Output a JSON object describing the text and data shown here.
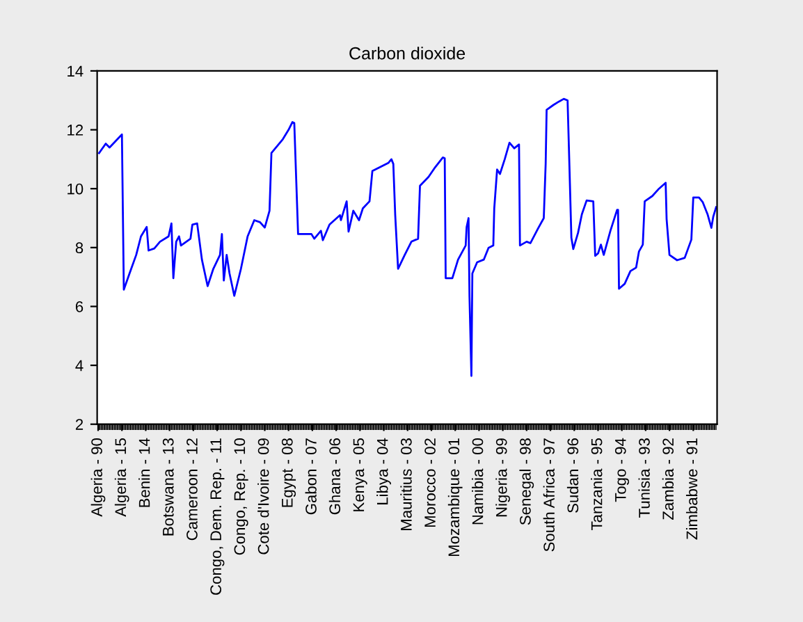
{
  "chart_data": {
    "type": "line",
    "title": "Carbon dioxide",
    "categories": [
      "Algeria - 90",
      null,
      null,
      null,
      null,
      null,
      null,
      null,
      null,
      null,
      null,
      null,
      null,
      null,
      null,
      null,
      null,
      null,
      null,
      null,
      null,
      null,
      null,
      null,
      null,
      "Algeria - 15",
      null,
      null,
      null,
      null,
      null,
      null,
      null,
      null,
      null,
      null,
      null,
      null,
      null,
      null,
      null,
      null,
      null,
      null,
      null,
      null,
      null,
      null,
      null,
      null,
      "Benin - 14",
      null,
      null,
      null,
      null,
      null,
      null,
      null,
      null,
      null,
      null,
      null,
      null,
      null,
      null,
      null,
      null,
      null,
      null,
      null,
      null,
      null,
      null,
      null,
      null,
      "Botswana - 13",
      null,
      null,
      null,
      null,
      null,
      null,
      null,
      null,
      null,
      null,
      null,
      null,
      null,
      null,
      null,
      null,
      null,
      null,
      null,
      null,
      null,
      null,
      null,
      null,
      "Cameroon - 12",
      null,
      null,
      null,
      null,
      null,
      null,
      null,
      null,
      null,
      null,
      null,
      null,
      null,
      null,
      null,
      null,
      null,
      null,
      null,
      null,
      null,
      null,
      null,
      null,
      "Congo, Dem. Rep. - 11",
      null,
      null,
      null,
      null,
      null,
      null,
      null,
      null,
      null,
      null,
      null,
      null,
      null,
      null,
      null,
      null,
      null,
      null,
      null,
      null,
      null,
      null,
      null,
      null,
      "Congo, Rep. - 10",
      null,
      null,
      null,
      null,
      null,
      null,
      null,
      null,
      null,
      null,
      null,
      null,
      null,
      null,
      null,
      null,
      null,
      null,
      null,
      null,
      null,
      null,
      null,
      null,
      "Cote d'Ivoire - 09",
      null,
      null,
      null,
      null,
      null,
      null,
      null,
      null,
      null,
      null,
      null,
      null,
      null,
      null,
      null,
      null,
      null,
      null,
      null,
      null,
      null,
      null,
      null,
      null,
      "Egypt - 08",
      null,
      null,
      null,
      null,
      null,
      null,
      null,
      null,
      null,
      null,
      null,
      null,
      null,
      null,
      null,
      null,
      null,
      null,
      null,
      null,
      null,
      null,
      null,
      null,
      "Gabon - 07",
      null,
      null,
      null,
      null,
      null,
      null,
      null,
      null,
      null,
      null,
      null,
      null,
      null,
      null,
      null,
      null,
      null,
      null,
      null,
      null,
      null,
      null,
      null,
      null,
      "Ghana - 06",
      null,
      null,
      null,
      null,
      null,
      null,
      null,
      null,
      null,
      null,
      null,
      null,
      null,
      null,
      null,
      null,
      null,
      null,
      null,
      null,
      null,
      null,
      null,
      null,
      "Kenya - 05",
      null,
      null,
      null,
      null,
      null,
      null,
      null,
      null,
      null,
      null,
      null,
      null,
      null,
      null,
      null,
      null,
      null,
      null,
      null,
      null,
      null,
      null,
      null,
      null,
      "Libya - 04",
      null,
      null,
      null,
      null,
      null,
      null,
      null,
      null,
      null,
      null,
      null,
      null,
      null,
      null,
      null,
      null,
      null,
      null,
      null,
      null,
      null,
      null,
      null,
      null,
      "Mauritius - 03",
      null,
      null,
      null,
      null,
      null,
      null,
      null,
      null,
      null,
      null,
      null,
      null,
      null,
      null,
      null,
      null,
      null,
      null,
      null,
      null,
      null,
      null,
      null,
      null,
      "Morocco - 02",
      null,
      null,
      null,
      null,
      null,
      null,
      null,
      null,
      null,
      null,
      null,
      null,
      null,
      null,
      null,
      null,
      null,
      null,
      null,
      null,
      null,
      null,
      null,
      null,
      "Mozambique - 01",
      null,
      null,
      null,
      null,
      null,
      null,
      null,
      null,
      null,
      null,
      null,
      null,
      null,
      null,
      null,
      null,
      null,
      null,
      null,
      null,
      null,
      null,
      null,
      null,
      "Namibia - 00",
      null,
      null,
      null,
      null,
      null,
      null,
      null,
      null,
      null,
      null,
      null,
      null,
      null,
      null,
      null,
      null,
      null,
      null,
      null,
      null,
      null,
      null,
      null,
      null,
      "Nigeria - 99",
      null,
      null,
      null,
      null,
      null,
      null,
      null,
      null,
      null,
      null,
      null,
      null,
      null,
      null,
      null,
      null,
      null,
      null,
      null,
      null,
      null,
      null,
      null,
      null,
      "Senegal - 98",
      null,
      null,
      null,
      null,
      null,
      null,
      null,
      null,
      null,
      null,
      null,
      null,
      null,
      null,
      null,
      null,
      null,
      null,
      null,
      null,
      null,
      null,
      null,
      null,
      "South Africa - 97",
      null,
      null,
      null,
      null,
      null,
      null,
      null,
      null,
      null,
      null,
      null,
      null,
      null,
      null,
      null,
      null,
      null,
      null,
      null,
      null,
      null,
      null,
      null,
      null,
      "Sudan - 96",
      null,
      null,
      null,
      null,
      null,
      null,
      null,
      null,
      null,
      null,
      null,
      null,
      null,
      null,
      null,
      null,
      null,
      null,
      null,
      null,
      null,
      null,
      null,
      null,
      "Tanzania - 95",
      null,
      null,
      null,
      null,
      null,
      null,
      null,
      null,
      null,
      null,
      null,
      null,
      null,
      null,
      null,
      null,
      null,
      null,
      null,
      null,
      null,
      null,
      null,
      null,
      "Togo - 94",
      null,
      null,
      null,
      null,
      null,
      null,
      null,
      null,
      null,
      null,
      null,
      null,
      null,
      null,
      null,
      null,
      null,
      null,
      null,
      null,
      null,
      null,
      null,
      null,
      "Tunisia - 93",
      null,
      null,
      null,
      null,
      null,
      null,
      null,
      null,
      null,
      null,
      null,
      null,
      null,
      null,
      null,
      null,
      null,
      null,
      null,
      null,
      null,
      null,
      null,
      null,
      "Zambia - 92",
      null,
      null,
      null,
      null,
      null,
      null,
      null,
      null,
      null,
      null,
      null,
      null,
      null,
      null,
      null,
      null,
      null,
      null,
      null,
      null,
      null,
      null,
      null,
      null,
      "Zimbabwe - 91",
      null,
      null,
      null,
      null,
      null,
      null,
      null,
      null,
      null,
      null,
      null,
      null,
      null,
      null,
      null,
      null,
      null,
      null,
      null,
      null,
      null,
      null,
      null,
      null
    ],
    "series": [
      {
        "color": "#0000ff",
        "values": [
          null,
          11.21,
          null,
          null,
          null,
          null,
          null,
          null,
          11.53,
          null,
          null,
          null,
          11.4,
          null,
          null,
          null,
          null,
          null,
          null,
          null,
          null,
          null,
          null,
          null,
          null,
          11.84,
          null,
          6.57,
          null,
          null,
          null,
          null,
          null,
          7.12,
          null,
          null,
          null,
          null,
          null,
          null,
          7.75,
          null,
          null,
          null,
          null,
          8.38,
          null,
          null,
          null,
          null,
          null,
          8.7,
          null,
          7.9,
          null,
          null,
          null,
          null,
          null,
          7.97,
          null,
          null,
          null,
          null,
          null,
          8.2,
          null,
          null,
          null,
          null,
          null,
          null,
          null,
          null,
          8.38,
          null,
          null,
          8.82,
          null,
          6.96,
          null,
          null,
          8.2,
          null,
          null,
          8.38,
          null,
          8.07,
          null,
          null,
          null,
          null,
          null,
          null,
          null,
          null,
          null,
          8.3,
          null,
          8.78,
          null,
          null,
          null,
          null,
          8.82,
          null,
          null,
          null,
          null,
          7.59,
          null,
          null,
          null,
          null,
          null,
          6.69,
          null,
          null,
          null,
          null,
          null,
          7.28,
          null,
          null,
          null,
          null,
          null,
          null,
          7.75,
          null,
          8.46,
          null,
          6.88,
          null,
          null,
          7.75,
          null,
          null,
          7.12,
          null,
          null,
          null,
          null,
          6.36,
          null,
          null,
          null,
          null,
          null,
          null,
          7.28,
          null,
          null,
          null,
          null,
          null,
          null,
          8.38,
          null,
          null,
          null,
          null,
          null,
          null,
          8.93,
          null,
          null,
          null,
          null,
          null,
          8.86,
          null,
          null,
          null,
          null,
          8.68,
          null,
          null,
          null,
          null,
          9.25,
          null,
          11.21,
          null,
          null,
          null,
          null,
          null,
          null,
          null,
          null,
          null,
          null,
          null,
          11.68,
          null,
          null,
          null,
          null,
          null,
          12.0,
          null,
          null,
          null,
          12.26,
          null,
          12.23,
          null,
          10.34,
          null,
          8.46,
          null,
          null,
          null,
          null,
          null,
          null,
          null,
          null,
          null,
          null,
          null,
          null,
          null,
          8.46,
          null,
          null,
          8.3,
          null,
          null,
          null,
          null,
          null,
          null,
          8.57,
          null,
          8.25,
          null,
          null,
          null,
          null,
          null,
          null,
          8.78,
          null,
          null,
          null,
          null,
          null,
          null,
          null,
          null,
          null,
          null,
          9.1,
          8.93,
          null,
          null,
          null,
          null,
          null,
          9.57,
          null,
          8.54,
          null,
          null,
          null,
          null,
          9.25,
          null,
          null,
          null,
          null,
          null,
          8.93,
          null,
          null,
          null,
          9.33,
          null,
          null,
          null,
          null,
          null,
          null,
          9.57,
          null,
          null,
          10.6,
          null,
          null,
          null,
          null,
          null,
          null,
          null,
          null,
          null,
          null,
          null,
          null,
          null,
          null,
          null,
          null,
          10.88,
          null,
          null,
          11.0,
          null,
          10.84,
          null,
          9.1,
          null,
          null,
          7.28,
          null,
          null,
          null,
          null,
          null,
          null,
          7.75,
          null,
          null,
          null,
          null,
          null,
          null,
          8.2,
          null,
          null,
          null,
          null,
          null,
          null,
          8.3,
          null,
          10.1,
          null,
          null,
          null,
          null,
          null,
          null,
          null,
          null,
          10.4,
          null,
          null,
          null,
          null,
          null,
          null,
          10.73,
          null,
          null,
          null,
          null,
          null,
          null,
          null,
          11.06,
          null,
          11.03,
          6.96,
          null,
          null,
          null,
          null,
          null,
          null,
          6.96,
          null,
          null,
          null,
          null,
          null,
          7.59,
          null,
          null,
          null,
          null,
          null,
          null,
          null,
          8.07,
          8.7,
          null,
          9.0,
          6.33,
          null,
          3.64,
          7.12,
          null,
          null,
          null,
          null,
          7.5,
          null,
          null,
          null,
          null,
          null,
          null,
          7.59,
          null,
          null,
          null,
          null,
          7.99,
          null,
          null,
          null,
          null,
          8.07,
          9.33,
          null,
          null,
          10.65,
          null,
          null,
          10.5,
          null,
          null,
          null,
          null,
          11.0,
          null,
          null,
          null,
          null,
          11.56,
          null,
          null,
          null,
          null,
          11.37,
          null,
          null,
          null,
          null,
          11.5,
          8.07,
          null,
          null,
          null,
          null,
          null,
          null,
          8.2,
          null,
          null,
          null,
          8.15,
          null,
          null,
          null,
          null,
          null,
          null,
          null,
          8.65,
          null,
          null,
          null,
          null,
          null,
          9.0,
          null,
          10.85,
          12.68,
          null,
          null,
          null,
          null,
          null,
          null,
          12.84,
          null,
          null,
          null,
          null,
          null,
          12.96,
          null,
          null,
          null,
          null,
          13.05,
          null,
          null,
          null,
          13.0,
          null,
          10.7,
          null,
          8.33,
          null,
          7.95,
          null,
          null,
          null,
          null,
          8.5,
          null,
          null,
          null,
          9.13,
          null,
          null,
          null,
          null,
          9.6,
          null,
          null,
          null,
          null,
          null,
          null,
          9.57,
          null,
          7.72,
          null,
          null,
          7.8,
          null,
          null,
          8.1,
          null,
          null,
          7.75,
          null,
          null,
          null,
          null,
          null,
          null,
          8.57,
          null,
          null,
          null,
          null,
          null,
          null,
          9.28,
          9.28,
          6.6,
          null,
          null,
          null,
          null,
          null,
          6.77,
          null,
          null,
          null,
          null,
          null,
          7.2,
          null,
          null,
          null,
          null,
          null,
          7.32,
          null,
          null,
          7.87,
          null,
          null,
          null,
          8.1,
          null,
          9.57,
          null,
          null,
          null,
          null,
          null,
          null,
          null,
          9.75,
          null,
          null,
          null,
          null,
          null,
          null,
          10.0,
          null,
          null,
          null,
          null,
          null,
          null,
          10.2,
          8.97,
          null,
          null,
          7.75,
          null,
          null,
          null,
          null,
          null,
          null,
          null,
          7.57,
          null,
          null,
          null,
          null,
          null,
          null,
          null,
          7.65,
          null,
          null,
          null,
          null,
          null,
          null,
          8.27,
          null,
          9.7,
          null,
          null,
          null,
          null,
          null,
          9.7,
          null,
          null,
          null,
          9.54,
          null,
          null,
          null,
          null,
          9.13,
          null,
          null,
          null,
          8.67,
          null,
          9.05,
          null,
          null,
          9.37
        ]
      }
    ],
    "ylim": [
      2,
      14
    ],
    "yticks": [
      2,
      4,
      6,
      8,
      10,
      12,
      14
    ],
    "grid": false,
    "marker": "none",
    "line_style": "solid"
  }
}
